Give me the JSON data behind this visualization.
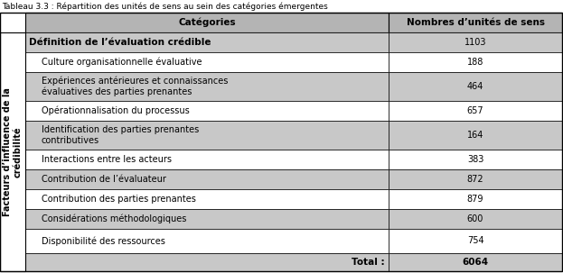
{
  "title": "Tableau 3.3 : Répartition des unités de sens au sein des catégories émergentes",
  "col1_header": "Catégories",
  "col2_header": "Nombres d’unités de sens",
  "rows": [
    {
      "label": "Définition de l’évaluation crédible",
      "value": "1103",
      "bold": true,
      "indent": 0,
      "shaded": true,
      "multiline": false
    },
    {
      "label": "Culture organisationnelle évaluative",
      "value": "188",
      "bold": false,
      "indent": 1,
      "shaded": false,
      "multiline": false
    },
    {
      "label": "Expériences antérieures et connaissances\névaluatives des parties prenantes",
      "value": "464",
      "bold": false,
      "indent": 1,
      "shaded": true,
      "multiline": true
    },
    {
      "label": "Opérationnalisation du processus",
      "value": "657",
      "bold": false,
      "indent": 1,
      "shaded": false,
      "multiline": false
    },
    {
      "label": "Identification des parties prenantes\ncontributives",
      "value": "164",
      "bold": false,
      "indent": 1,
      "shaded": true,
      "multiline": true
    },
    {
      "label": "Interactions entre les acteurs",
      "value": "383",
      "bold": false,
      "indent": 1,
      "shaded": false,
      "multiline": false
    },
    {
      "label": "Contribution de l’évaluateur",
      "value": "872",
      "bold": false,
      "indent": 1,
      "shaded": true,
      "multiline": false
    },
    {
      "label": "Contribution des parties prenantes",
      "value": "879",
      "bold": false,
      "indent": 1,
      "shaded": false,
      "multiline": false
    },
    {
      "label": "Considérations méthodologiques",
      "value": "600",
      "bold": false,
      "indent": 1,
      "shaded": true,
      "multiline": false
    },
    {
      "label": "Disponibilité des ressources",
      "value": "754",
      "bold": false,
      "indent": 1,
      "shaded": false,
      "multiline": false
    }
  ],
  "total_label": "Total :",
  "total_value": "6064",
  "side_label": "Facteurs d’influence de la\ncrédibilité",
  "color_shaded": "#c8c8c8",
  "color_white": "#ffffff",
  "color_header_bg": "#b4b4b4",
  "color_total_bg": "#c8c8c8",
  "border_color": "#000000",
  "text_color": "#000000",
  "title_fontsize": 6.5,
  "header_fontsize": 7.5,
  "body_fontsize": 7.0,
  "side_fontsize": 7.0
}
